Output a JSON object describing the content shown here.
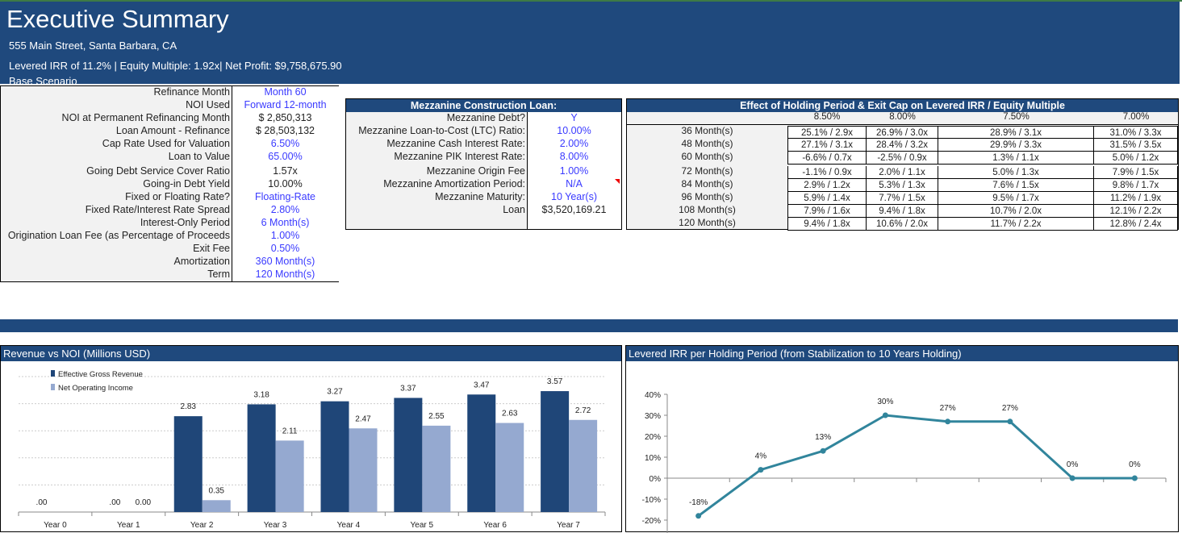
{
  "header": {
    "title": "Executive Summary",
    "address": "555 Main Street, Santa Barbara, CA",
    "metrics": "Levered IRR of 11.2% | Equity Multiple: 1.92x| Net Profit: $9,758,675.90",
    "scenario": "Base Scenario"
  },
  "refinance": {
    "rows": [
      {
        "label": "Refinance Month",
        "value": "Month 60",
        "input": true
      },
      {
        "label": "NOI Used",
        "value": "Forward 12-month",
        "input": true
      },
      {
        "label": "NOI at Permanent Refinancing Month",
        "value": "$ 2,850,313",
        "input": false
      },
      {
        "label": "Loan Amount - Refinance",
        "value": "$ 28,503,132",
        "input": false
      },
      {
        "label": "Cap Rate Used for Valuation",
        "value": "6.50%",
        "input": true
      },
      {
        "label": "Loan to Value",
        "value": "65.00%",
        "input": true
      },
      {
        "label": "Going Debt Service Cover Ratio",
        "value": "1.57x",
        "input": false
      },
      {
        "label": "Going-in Debt Yield",
        "value": "10.00%",
        "input": false
      },
      {
        "label": "Fixed or Floating Rate?",
        "value": "Floating-Rate",
        "input": true
      },
      {
        "label": "Fixed Rate/Interest Rate Spread",
        "value": "2.80%",
        "input": true
      },
      {
        "label": "Interest-Only Period",
        "value": "6 Month(s)",
        "input": true
      },
      {
        "label": "Origination Loan Fee (as Percentage of Proceeds",
        "value": "1.00%",
        "input": true
      },
      {
        "label": "Exit Fee",
        "value": "0.50%",
        "input": true
      },
      {
        "label": "Amortization",
        "value": "360 Month(s)",
        "input": true
      },
      {
        "label": "Term",
        "value": "120 Month(s)",
        "input": true
      }
    ]
  },
  "mezzanine": {
    "title": "Mezzanine Construction Loan:",
    "rows": [
      {
        "label": "Mezzanine Debt?",
        "value": "Y",
        "input": true
      },
      {
        "label": "Mezzanine Loan-to-Cost (LTC) Ratio:",
        "value": "10.00%",
        "input": true
      },
      {
        "label": "Mezzanine Cash Interest Rate:",
        "value": "2.00%",
        "input": true
      },
      {
        "label": "Mezzanine PIK Interest Rate:",
        "value": "8.00%",
        "input": true
      },
      {
        "label": "Mezzanine Origin Fee",
        "value": "1.00%",
        "input": true
      },
      {
        "label": "Mezzanine Amortization Period:",
        "value": "N/A",
        "input": true
      },
      {
        "label": "Mezzanine Maturity:",
        "value": "10 Year(s)",
        "input": true
      },
      {
        "label": "Loan",
        "value": "$3,520,169.21",
        "input": false
      }
    ]
  },
  "sensitivity": {
    "title": "Effect of Holding Period & Exit Cap on Levered IRR / Equity Multiple",
    "columns": [
      "8.50%",
      "8.00%",
      "7.50%",
      "7.00%"
    ],
    "rows": [
      {
        "label": "36 Month(s)",
        "cells": [
          "25.1% / 2.9x",
          "26.9% / 3.0x",
          "28.9% / 3.1x",
          "31.0% / 3.3x"
        ]
      },
      {
        "label": "48 Month(s)",
        "cells": [
          "27.1% / 3.1x",
          "28.4% / 3.2x",
          "29.9% / 3.3x",
          "31.5% / 3.5x"
        ]
      },
      {
        "label": "60 Month(s)",
        "cells": [
          "-6.6% / 0.7x",
          "-2.5% / 0.9x",
          "1.3% / 1.1x",
          "5.0% / 1.2x"
        ]
      },
      {
        "label": "72 Month(s)",
        "cells": [
          "-1.1% / 0.9x",
          "2.0% / 1.1x",
          "5.0% / 1.3x",
          "7.9% / 1.5x"
        ]
      },
      {
        "label": "84 Month(s)",
        "cells": [
          "2.9% / 1.2x",
          "5.3% / 1.3x",
          "7.6% / 1.5x",
          "9.8% / 1.7x"
        ]
      },
      {
        "label": "96 Month(s)",
        "cells": [
          "5.9% / 1.4x",
          "7.7% / 1.5x",
          "9.5% / 1.7x",
          "11.2% / 1.9x"
        ]
      },
      {
        "label": "108 Month(s)",
        "cells": [
          "7.9% / 1.6x",
          "9.4% / 1.8x",
          "10.7% / 2.0x",
          "12.1% / 2.2x"
        ]
      },
      {
        "label": "120 Month(s)",
        "cells": [
          "9.4% / 1.8x",
          "10.6% / 2.0x",
          "11.7% / 2.2x",
          "12.8% / 2.4x"
        ]
      }
    ]
  },
  "colors": {
    "navy": "#1f497d",
    "input_blue": "#3a3aff",
    "bar_revenue": "#1f4678",
    "bar_noi": "#95a9d0",
    "line": "#31859c"
  },
  "chart_data": [
    {
      "type": "bar",
      "title": "Revenue vs NOI (Millions USD)",
      "ylim": [
        0,
        4
      ],
      "grid": true,
      "legend": "top-left",
      "categories": [
        "Year 0",
        "Year 1",
        "Year 2",
        "Year 3",
        "Year 4",
        "Year 5",
        "Year 6",
        "Year 7"
      ],
      "series": [
        {
          "name": "Effective Gross Revenue",
          "values": [
            0,
            0,
            2.83,
            3.18,
            3.27,
            3.37,
            3.47,
            3.57
          ],
          "labels": [
            ".00",
            ".00",
            "2.83",
            "3.18",
            "3.27",
            "3.37",
            "3.47",
            "3.57"
          ]
        },
        {
          "name": "Net Operating Income",
          "values": [
            0,
            0,
            0.35,
            2.11,
            2.47,
            2.55,
            2.63,
            2.72
          ],
          "labels": [
            "",
            "0.00",
            "0.35",
            "2.11",
            "2.47",
            "2.55",
            "2.63",
            "2.72"
          ]
        }
      ]
    },
    {
      "type": "line",
      "title": "Levered IRR per Holding Period (from Stabilization to 10 Years Holding)",
      "ylim": [
        -20,
        40
      ],
      "yticks": [
        "40%",
        "30%",
        "20%",
        "10%",
        "0%",
        "-10%",
        "-20%"
      ],
      "values": [
        -18,
        4,
        13,
        30,
        27,
        27,
        0,
        0
      ],
      "labels": [
        "-18%",
        "4%",
        "13%",
        "30%",
        "27%",
        "27%",
        "0%",
        "0%"
      ]
    }
  ]
}
